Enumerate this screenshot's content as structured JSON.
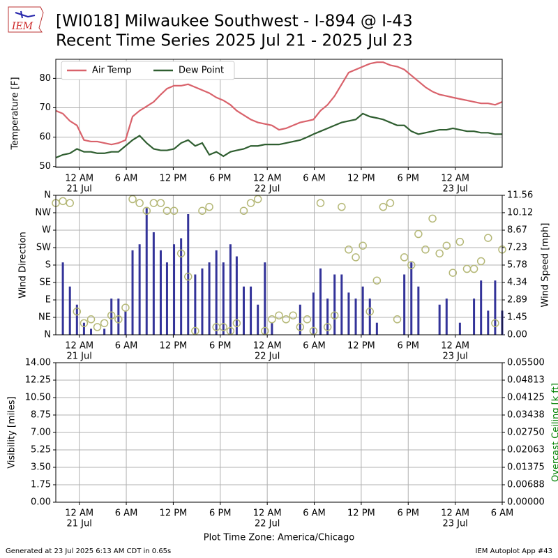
{
  "title": [
    "[WI018] Milwaukee Southwest - I-894 @ I-43",
    "Recent Time Series 2025 Jul 21 - 2025 Jul 23"
  ],
  "logo": "IEM",
  "footer_left": "Generated at 23 Jul 2025 6:13 AM CDT in 0.65s",
  "footer_right": "IEM Autoplot App #43",
  "chart_data": [
    {
      "type": "line",
      "ylabel": "Temperature [F]",
      "grid": true,
      "legend": "upper left",
      "xlim": [
        -3,
        54
      ],
      "xticks": [
        {
          "value": 0,
          "label": "12 AM",
          "date": "21 Jul"
        },
        {
          "value": 6,
          "label": "6 AM"
        },
        {
          "value": 12,
          "label": "12 PM"
        },
        {
          "value": 18,
          "label": "6 PM"
        },
        {
          "value": 24,
          "label": "12 AM",
          "date": "22 Jul"
        },
        {
          "value": 30,
          "label": "6 AM"
        },
        {
          "value": 36,
          "label": "12 PM"
        },
        {
          "value": 42,
          "label": "6 PM"
        },
        {
          "value": 48,
          "label": "12 AM",
          "date": "23 Jul"
        }
      ],
      "ylim": [
        49.7,
        86.5
      ],
      "yticks": [
        50,
        60,
        70,
        80
      ],
      "x": [
        -3.0,
        -2.1,
        -1.2,
        -0.3,
        0.6,
        1.5,
        2.3,
        3.2,
        4.1,
        5.0,
        5.9,
        6.8,
        7.7,
        8.6,
        9.5,
        10.4,
        11.2,
        12.1,
        13.0,
        13.9,
        14.8,
        15.7,
        16.6,
        17.5,
        18.4,
        19.3,
        20.1,
        21.0,
        21.9,
        22.8,
        23.7,
        24.6,
        25.5,
        26.4,
        27.3,
        28.2,
        29.1,
        29.9,
        30.8,
        31.7,
        32.6,
        33.5,
        34.4,
        35.3,
        36.2,
        37.1,
        38.0,
        38.8,
        39.7,
        40.6,
        41.5,
        42.4,
        43.3,
        44.2,
        45.1,
        46.0,
        46.9,
        47.7,
        48.6,
        49.5,
        50.4,
        51.3,
        52.2,
        53.1,
        54.0
      ],
      "series": [
        {
          "name": "Air Temp",
          "color": "#d9626b",
          "values": [
            69,
            68,
            65.5,
            64,
            59,
            58.5,
            58.5,
            58,
            57.5,
            58,
            59,
            67,
            69,
            70.5,
            72,
            74.5,
            76.5,
            77.5,
            77.5,
            78,
            77,
            76,
            75,
            73.5,
            72.5,
            71,
            69,
            67.5,
            66,
            65,
            64.5,
            64,
            62.5,
            63,
            64,
            65,
            65.5,
            66,
            69,
            71,
            74,
            78,
            82,
            83,
            84,
            85,
            85.5,
            85.5,
            84.5,
            84,
            83,
            81,
            79,
            77,
            75.5,
            74.5,
            74,
            73.5,
            73,
            72.5,
            72,
            71.5,
            71.5,
            71,
            72
          ]
        },
        {
          "name": "Dew Point",
          "color": "#2f5e30",
          "values": [
            53,
            54,
            54.5,
            56,
            55,
            55,
            54.5,
            54.5,
            55,
            55,
            57,
            59,
            60.5,
            58,
            56,
            55.5,
            55.5,
            56,
            58,
            59,
            57,
            58,
            54,
            55,
            53.5,
            55,
            55.5,
            56,
            57,
            57,
            57.5,
            57.5,
            57.5,
            58,
            58.5,
            59,
            60,
            61,
            62,
            63,
            64,
            65,
            65.5,
            66,
            68,
            67,
            66.5,
            66,
            65,
            64,
            64,
            62,
            61,
            61.5,
            62,
            62.5,
            62.5,
            63,
            62.5,
            62,
            62,
            61.5,
            61.5,
            61,
            61
          ]
        }
      ]
    },
    {
      "type": "combo",
      "ylabel": "Wind Direction",
      "y2label": "Wind Speed [mph]",
      "grid": true,
      "xlim": [
        -3,
        54
      ],
      "xticks": [
        {
          "value": 0,
          "label": "12 AM",
          "date": "21 Jul"
        },
        {
          "value": 6,
          "label": "6 AM"
        },
        {
          "value": 12,
          "label": "12 PM"
        },
        {
          "value": 18,
          "label": "6 PM"
        },
        {
          "value": 24,
          "label": "12 AM",
          "date": "22 Jul"
        },
        {
          "value": 30,
          "label": "6 AM"
        },
        {
          "value": 36,
          "label": "12 PM"
        },
        {
          "value": 42,
          "label": "6 PM"
        },
        {
          "value": 48,
          "label": "12 AM",
          "date": "23 Jul"
        }
      ],
      "ylim": [
        0,
        360
      ],
      "yticks": [
        {
          "value": 0,
          "label": "N"
        },
        {
          "value": 45,
          "label": "NE"
        },
        {
          "value": 90,
          "label": "E"
        },
        {
          "value": 135,
          "label": "SE"
        },
        {
          "value": 180,
          "label": "S"
        },
        {
          "value": 225,
          "label": "SW"
        },
        {
          "value": 270,
          "label": "W"
        },
        {
          "value": 315,
          "label": "NW"
        },
        {
          "value": 360,
          "label": "N"
        }
      ],
      "y2lim": [
        0,
        11.56
      ],
      "y2ticks": [
        {
          "value": 0,
          "label": "0.00"
        },
        1.45,
        2.89,
        4.34,
        5.78,
        7.23,
        8.67,
        10.12,
        11.56
      ],
      "x": [
        -3.0,
        -2.1,
        -1.2,
        -0.3,
        0.6,
        1.5,
        2.3,
        3.2,
        4.1,
        5.0,
        5.9,
        6.8,
        7.7,
        8.6,
        9.5,
        10.4,
        11.2,
        12.1,
        13.0,
        13.9,
        14.8,
        15.7,
        16.6,
        17.5,
        18.4,
        19.3,
        20.1,
        21.0,
        21.9,
        22.8,
        23.7,
        24.6,
        25.5,
        26.4,
        27.3,
        28.2,
        29.1,
        29.9,
        30.8,
        31.7,
        32.6,
        33.5,
        34.4,
        35.3,
        36.2,
        37.1,
        38.0,
        38.8,
        39.7,
        40.6,
        41.5,
        42.4,
        43.3,
        44.2,
        45.1,
        46.0,
        46.9,
        47.7,
        48.6,
        49.5,
        50.4,
        51.3,
        52.2,
        53.1,
        54.0
      ],
      "series": [
        {
          "type": "bar",
          "axis": "y2",
          "color": "#333399",
          "values": [
            0,
            6,
            4,
            2.5,
            1,
            0.5,
            0,
            0.5,
            3,
            3,
            2,
            7,
            7.5,
            10.5,
            8.5,
            7,
            6,
            7.5,
            8,
            10,
            5,
            5.5,
            6,
            7,
            6,
            7.5,
            6.5,
            4,
            4,
            2.5,
            6,
            1,
            0,
            0,
            0,
            2.5,
            0,
            3.5,
            5.5,
            3,
            5,
            5,
            3.5,
            3,
            4,
            3,
            1,
            0,
            0,
            0,
            5,
            6,
            4,
            0,
            0,
            2.5,
            3,
            0,
            1,
            0,
            3,
            4.5,
            2,
            4.5,
            2
          ]
        },
        {
          "type": "scatter",
          "axis": "y",
          "color": "#b5b877",
          "values": [
            340,
            345,
            340,
            60,
            30,
            40,
            20,
            30,
            50,
            40,
            70,
            350,
            340,
            320,
            340,
            340,
            320,
            320,
            210,
            150,
            10,
            320,
            330,
            20,
            20,
            10,
            30,
            320,
            340,
            350,
            10,
            40,
            50,
            40,
            50,
            20,
            40,
            10,
            340,
            20,
            50,
            330,
            220,
            200,
            230,
            60,
            140,
            330,
            340,
            40,
            200,
            180,
            260,
            220,
            300,
            210,
            230,
            160,
            240,
            170,
            170,
            190,
            250,
            30,
            220
          ]
        }
      ]
    },
    {
      "type": "line",
      "ylabel": "Visibility [miles]",
      "y2label": "Overcast Ceiling [k ft]",
      "grid": true,
      "xlabel": "Plot Time Zone: America/Chicago",
      "xlim": [
        -3,
        54
      ],
      "xticks": [
        {
          "value": 0,
          "label": "12 AM",
          "date": "21 Jul"
        },
        {
          "value": 6,
          "label": "6 AM"
        },
        {
          "value": 12,
          "label": "12 PM"
        },
        {
          "value": 18,
          "label": "6 PM"
        },
        {
          "value": 24,
          "label": "12 AM",
          "date": "22 Jul"
        },
        {
          "value": 30,
          "label": "6 AM"
        },
        {
          "value": 36,
          "label": "12 PM"
        },
        {
          "value": 42,
          "label": "6 PM"
        },
        {
          "value": 48,
          "label": "12 AM",
          "date": "23 Jul"
        },
        {
          "value": 54,
          "label": "6 AM"
        }
      ],
      "ylim": [
        0,
        14
      ],
      "yticks": [
        {
          "value": 0,
          "label": "0.00"
        },
        {
          "value": 1.75,
          "label": "1.75"
        },
        {
          "value": 3.5,
          "label": "3.50"
        },
        {
          "value": 5.25,
          "label": "5.25"
        },
        {
          "value": 7,
          "label": "7.00"
        },
        {
          "value": 8.75,
          "label": "8.75"
        },
        {
          "value": 10.5,
          "label": "10.50"
        },
        {
          "value": 12.25,
          "label": "12.25"
        },
        {
          "value": 14,
          "label": "14.00"
        }
      ],
      "y2lim": [
        0,
        0.055
      ],
      "y2ticks": [
        {
          "value": 0,
          "label": "0.00000"
        },
        {
          "value": 0.006875,
          "label": "0.00688"
        },
        {
          "value": 0.01375,
          "label": "0.01375"
        },
        {
          "value": 0.020625,
          "label": "0.02063"
        },
        {
          "value": 0.0275,
          "label": "0.02750"
        },
        {
          "value": 0.034375,
          "label": "0.03438"
        },
        {
          "value": 0.04125,
          "label": "0.04125"
        },
        {
          "value": 0.048125,
          "label": "0.04813"
        },
        {
          "value": 0.055,
          "label": "0.05500"
        }
      ],
      "series": []
    }
  ]
}
